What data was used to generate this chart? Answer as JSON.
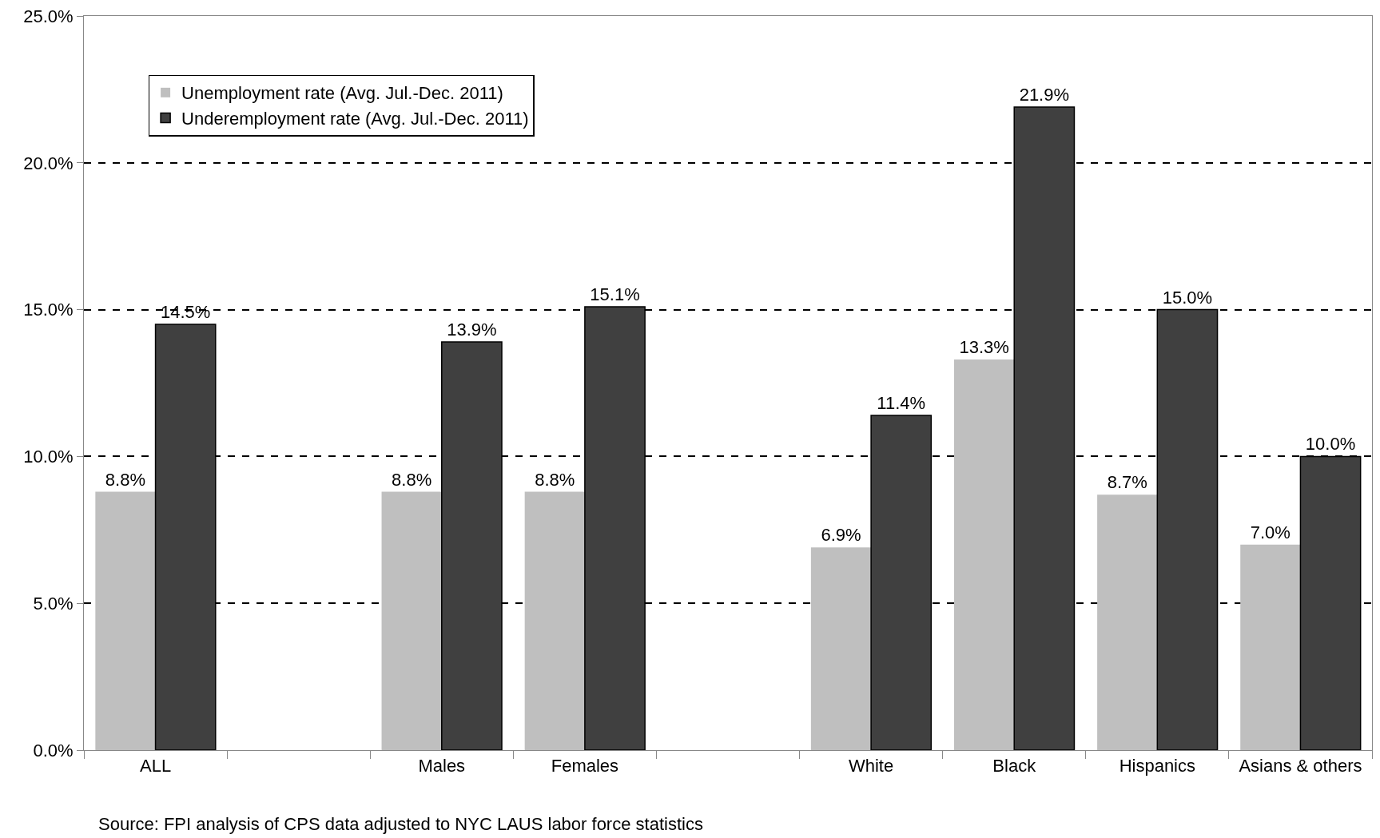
{
  "chart_data": {
    "type": "bar",
    "categories": [
      "ALL",
      null,
      "Males",
      "Females",
      null,
      "White",
      "Black",
      "Hispanics",
      "Asians & others"
    ],
    "series": [
      {
        "name": "Unemployment rate (Avg. Jul.-Dec. 2011)",
        "color": "#bfbfbf",
        "values": [
          8.8,
          null,
          8.8,
          8.8,
          null,
          6.9,
          13.3,
          8.7,
          7.0
        ],
        "value_labels": [
          "8.8%",
          null,
          "8.8%",
          "8.8%",
          null,
          "6.9%",
          "13.3%",
          "8.7%",
          "7.0%"
        ]
      },
      {
        "name": "Underemployment rate (Avg. Jul.-Dec. 2011)",
        "color": "#404040",
        "values": [
          14.5,
          null,
          13.9,
          15.1,
          null,
          11.4,
          21.9,
          15.0,
          10.0
        ],
        "value_labels": [
          "14.5%",
          null,
          "13.9%",
          "15.1%",
          null,
          "11.4%",
          "21.9%",
          "15.0%",
          "10.0%"
        ]
      }
    ],
    "ylim": [
      0,
      25
    ],
    "yticks": [
      {
        "value": 0,
        "label": "0.0%"
      },
      {
        "value": 5,
        "label": "5.0%"
      },
      {
        "value": 10,
        "label": "10.0%"
      },
      {
        "value": 15,
        "label": "15.0%"
      },
      {
        "value": 20,
        "label": "20.0%"
      },
      {
        "value": 25,
        "label": "25.0%"
      }
    ],
    "grid": "y",
    "legend": "top left",
    "annotations": [
      "Source: FPI analysis of CPS data adjusted to NYC LAUS labor force statistics"
    ]
  }
}
